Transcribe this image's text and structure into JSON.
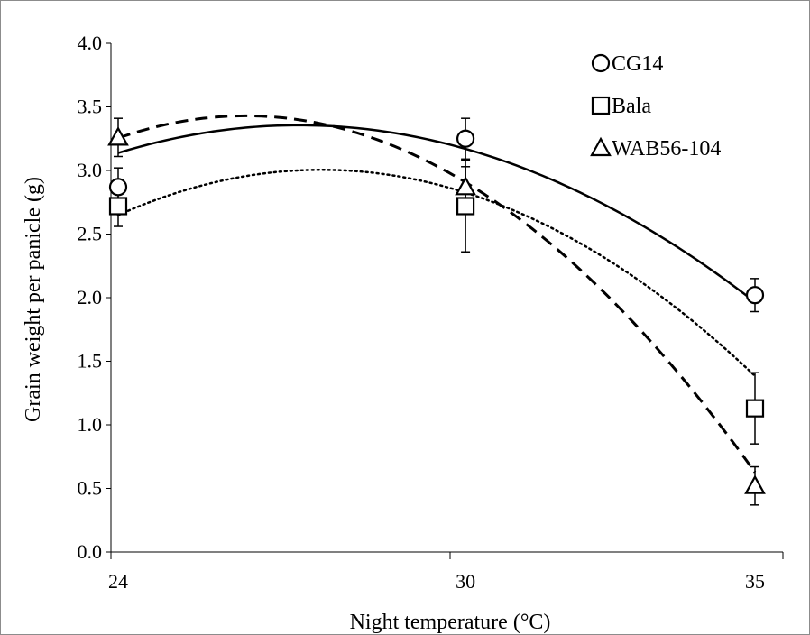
{
  "chart_data": {
    "type": "scatter",
    "xlabel": "Night temperature (°C)",
    "ylabel": "Grain weight per panicle (g)",
    "x_ticks": [
      "24",
      "30",
      "35"
    ],
    "y_ticks": [
      "0.0",
      "0.5",
      "1.0",
      "1.5",
      "2.0",
      "2.5",
      "3.0",
      "3.5",
      "4.0"
    ],
    "xlim": [
      24,
      35
    ],
    "ylim": [
      0,
      4
    ],
    "legend_position": "top-right",
    "series": [
      {
        "name": "CG14",
        "marker": "circle",
        "line_style": "solid",
        "x": [
          24,
          30,
          35
        ],
        "y": [
          2.87,
          3.25,
          2.02
        ],
        "err": [
          0.15,
          0.16,
          0.13
        ],
        "trend": [
          -0.0224,
          1.215,
          -13.12
        ]
      },
      {
        "name": "Bala",
        "marker": "square",
        "line_style": "dotted",
        "x": [
          24,
          30,
          35
        ],
        "y": [
          2.72,
          2.72,
          1.13
        ],
        "err": [
          0.16,
          0.36,
          0.28
        ],
        "trend": [
          -0.0289,
          1.5901,
          -18.867
        ]
      },
      {
        "name": "WAB56-104",
        "marker": "triangle",
        "line_style": "dashed",
        "x": [
          24,
          30,
          35
        ],
        "y": [
          3.26,
          2.87,
          0.52
        ],
        "err": [
          0.15,
          0.16,
          0.15
        ],
        "trend": [
          -0.0362,
          1.8969,
          -21.42
        ]
      }
    ]
  }
}
